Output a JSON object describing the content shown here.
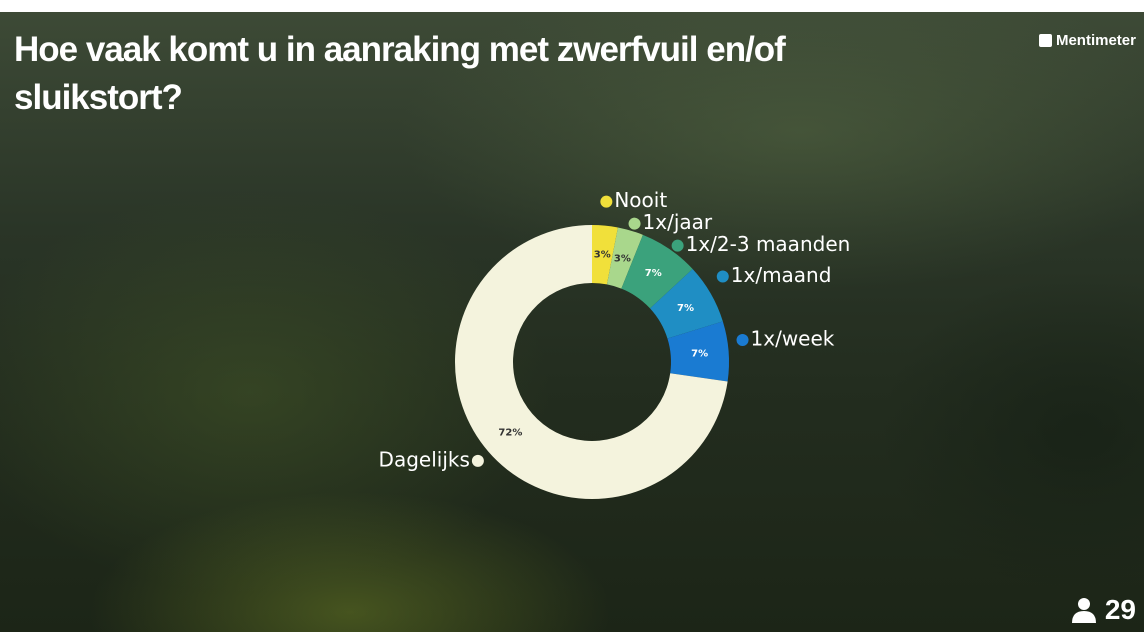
{
  "header": {
    "title": "Hoe vaak komt u in aanraking met zwerfvuil en/of sluikstort?",
    "brand": "Mentimeter"
  },
  "chart_data": {
    "type": "donut",
    "categories": [
      "Nooit",
      "1x/jaar",
      "1x/2-3 maanden",
      "1x/maand",
      "1x/week",
      "Dagelijks"
    ],
    "values": [
      3,
      3,
      7,
      7,
      7,
      72
    ],
    "value_labels": [
      "3%",
      "3%",
      "7%",
      "7%",
      "7%",
      "72%"
    ],
    "colors": [
      "#f1e03a",
      "#a9d78c",
      "#3ba27c",
      "#1f8ec4",
      "#1a7bd2",
      "#f4f3dd"
    ]
  },
  "participants": 29
}
